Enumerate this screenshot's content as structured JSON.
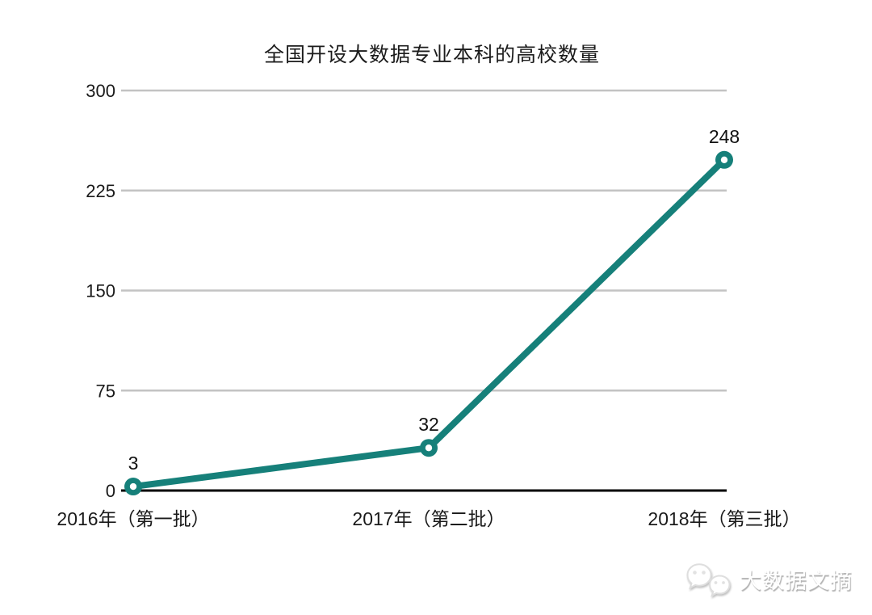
{
  "chart_data": {
    "type": "line",
    "title": "全国开设大数据专业本科的高校数量",
    "categories": [
      "2016年（第一批）",
      "2017年（第二批）",
      "2018年（第三批）"
    ],
    "series": [
      {
        "values": [
          3,
          32,
          248
        ]
      }
    ],
    "point_labels": [
      "3",
      "32",
      "248"
    ],
    "y_ticks": [
      0,
      75,
      150,
      225,
      300
    ],
    "ylim": [
      0,
      300
    ],
    "grid": true,
    "legend_position": "none",
    "line_color": "#16807A",
    "marker_center_color": "#ffffff",
    "grid_color": "#c3c3c3",
    "axis_color": "#000000",
    "text_color": "#1a1a1a"
  },
  "watermark": {
    "text": "大数据文摘",
    "icon": "wechat-chat-bubbles-icon"
  }
}
